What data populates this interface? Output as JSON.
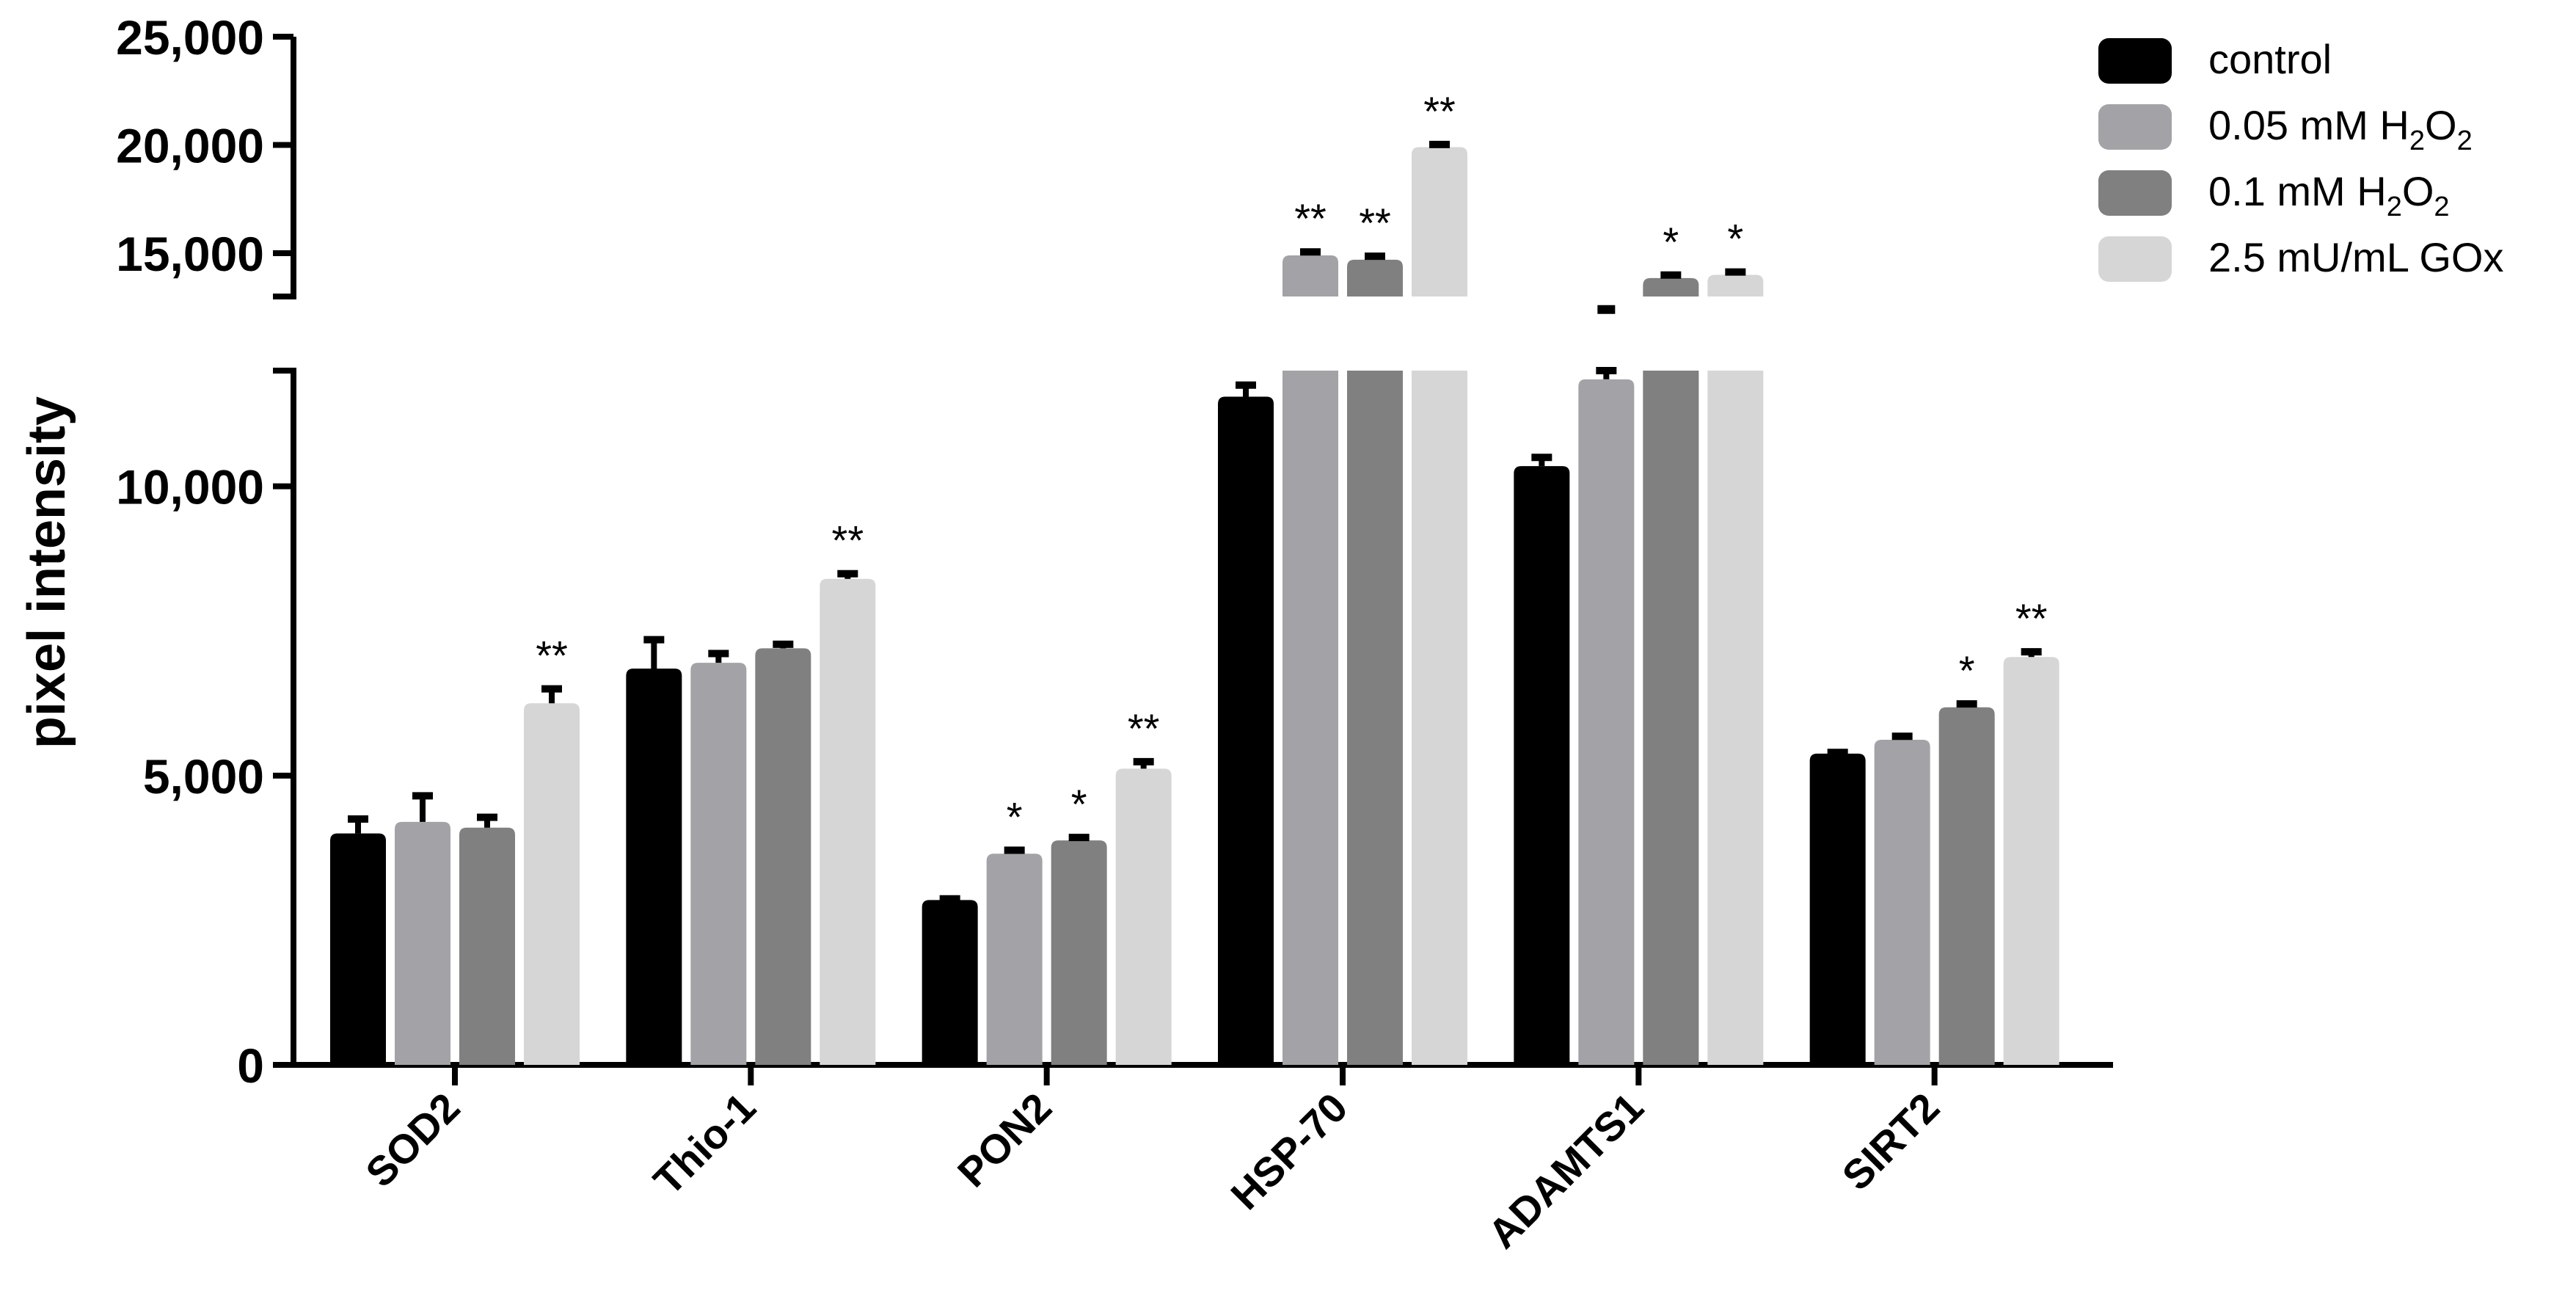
{
  "chart_data": {
    "type": "bar",
    "ylabel": "pixel intensity",
    "y_axis_break": true,
    "y_segments": [
      {
        "range": [
          0,
          12000
        ],
        "ticks": [
          0,
          5000,
          10000
        ],
        "tick_labels": [
          "0",
          "5,000",
          "10,000"
        ]
      },
      {
        "range": [
          13000,
          25000
        ],
        "ticks": [
          15000,
          20000,
          25000
        ],
        "tick_labels": [
          "15,000",
          "20,000",
          "25,000"
        ]
      }
    ],
    "categories": [
      "SOD2",
      "Thio-1",
      "PON2",
      "HSP-70",
      "ADAMTS1",
      "SIRT2"
    ],
    "series": [
      {
        "name": "control",
        "name_main": "control",
        "name_sub1": "",
        "name_mid": "",
        "name_sub2": "",
        "color": "#000000",
        "values": [
          4000,
          6850,
          2850,
          11550,
          10350,
          5380
        ],
        "errors": [
          250,
          500,
          20,
          200,
          150,
          20
        ],
        "sig": [
          "",
          "",
          "",
          "",
          "",
          ""
        ]
      },
      {
        "name": "0.05 mM H2O2",
        "name_main": "0.05 mM H",
        "name_sub1": "2",
        "name_mid": "O",
        "name_sub2": "2",
        "color": "#a3a2a7",
        "values": [
          4200,
          6950,
          3650,
          14900,
          11850,
          5620
        ],
        "errors": [
          450,
          160,
          60,
          160,
          150,
          60
        ],
        "sig": [
          "",
          "",
          "*",
          "**",
          "",
          ""
        ]
      },
      {
        "name": "0.1 mM H2O2",
        "name_main": "0.1 mM H",
        "name_sub1": "2",
        "name_mid": "O",
        "name_sub2": "2",
        "color": "#808080",
        "values": [
          4100,
          7200,
          3880,
          14700,
          13850,
          6180
        ],
        "errors": [
          180,
          70,
          50,
          160,
          140,
          60
        ],
        "sig": [
          "",
          "",
          "*",
          "**",
          "*",
          "*"
        ]
      },
      {
        "name": "2.5 mU/mL GOx",
        "name_main": "2.5 mU/mL GOx",
        "name_sub1": "",
        "name_mid": "",
        "name_sub2": "",
        "color": "#d6d6d6",
        "values": [
          6250,
          8400,
          5120,
          19900,
          14000,
          7050
        ],
        "errors": [
          250,
          90,
          120,
          120,
          130,
          90
        ],
        "sig": [
          "**",
          "**",
          "**",
          "**",
          "*",
          "**"
        ]
      }
    ],
    "extra_marks": [
      {
        "category": "ADAMTS1",
        "series_index": 1,
        "kind": "dash",
        "value": 12400
      }
    ],
    "legend_position": "top-right",
    "grid": false
  }
}
